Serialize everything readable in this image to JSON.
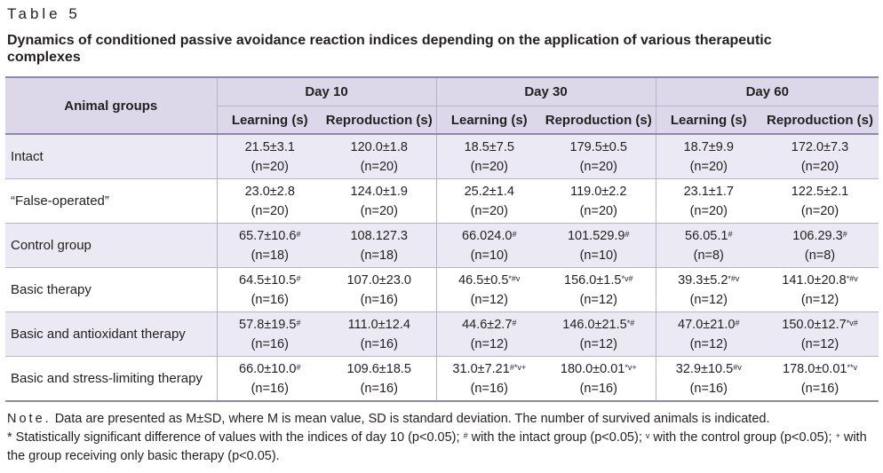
{
  "caption": {
    "label": "Table 5",
    "title": "Dynamics of conditioned passive avoidance reaction indices depending on the application of various therapeutic complexes"
  },
  "table": {
    "group_header": "Animal groups",
    "days": [
      "Day 10",
      "Day 30",
      "Day 60"
    ],
    "subheaders": [
      "Learning (s)",
      "Reproduction (s)",
      "Learning (s)",
      "Reproduction (s)",
      "Learning (s)",
      "Reproduction (s)"
    ],
    "rows": [
      {
        "group": "Intact",
        "cells": [
          {
            "v": "21.5±3.1",
            "s": "",
            "n": "(n=20)"
          },
          {
            "v": "120.0±1.8",
            "s": "",
            "n": "(n=20)"
          },
          {
            "v": "18.5±7.5",
            "s": "",
            "n": "(n=20)"
          },
          {
            "v": "179.5±0.5",
            "s": "",
            "n": "(n=20)"
          },
          {
            "v": "18.7±9.9",
            "s": "",
            "n": "(n=20)"
          },
          {
            "v": "172.0±7.3",
            "s": "",
            "n": "(n=20)"
          }
        ]
      },
      {
        "group": "“False-operated”",
        "cells": [
          {
            "v": "23.0±2.8",
            "s": "",
            "n": "(n=20)"
          },
          {
            "v": "124.0±1.9",
            "s": "",
            "n": "(n=20)"
          },
          {
            "v": "25.2±1.4",
            "s": "",
            "n": "(n=20)"
          },
          {
            "v": "119.0±2.2",
            "s": "",
            "n": "(n=20)"
          },
          {
            "v": "23.1±1.7",
            "s": "",
            "n": "(n=20)"
          },
          {
            "v": "122.5±2.1",
            "s": "",
            "n": "(n=20)"
          }
        ]
      },
      {
        "group": "Control group",
        "cells": [
          {
            "v": "65.7±10.6",
            "s": "#",
            "n": "(n=18)"
          },
          {
            "v": "108.127.3",
            "s": "",
            "n": "(n=18)"
          },
          {
            "v": "66.024.0",
            "s": "#",
            "n": "(n=10)"
          },
          {
            "v": "101.529.9",
            "s": "#",
            "n": "(n=10)"
          },
          {
            "v": "56.05.1",
            "s": "#",
            "n": "(n=8)"
          },
          {
            "v": "106.29.3",
            "s": "#",
            "n": "(n=8)"
          }
        ]
      },
      {
        "group": "Basic therapy",
        "cells": [
          {
            "v": "64.5±10.5",
            "s": "#",
            "n": "(n=16)"
          },
          {
            "v": "107.0±23.0",
            "s": "",
            "n": "(n=16)"
          },
          {
            "v": "46.5±0.5",
            "s": "*#v",
            "n": "(n=12)"
          },
          {
            "v": "156.0±1.5",
            "s": "*v#",
            "n": "(n=12)"
          },
          {
            "v": "39.3±5.2",
            "s": "*#v",
            "n": "(n=12)"
          },
          {
            "v": "141.0±20.8",
            "s": "*#v",
            "n": "(n=12)"
          }
        ]
      },
      {
        "group": "Basic and antioxidant therapy",
        "cells": [
          {
            "v": "57.8±19.5",
            "s": "#",
            "n": "(n=16)"
          },
          {
            "v": "111.0±12.4",
            "s": "",
            "n": "(n=16)"
          },
          {
            "v": "44.6±2.7",
            "s": "#",
            "n": "(n=12)"
          },
          {
            "v": "146.0±21.5",
            "s": "*#",
            "n": "(n=12)"
          },
          {
            "v": "47.0±21.0",
            "s": "#",
            "n": "(n=12)"
          },
          {
            "v": "150.0±12.7",
            "s": "*v#",
            "n": "(n=12)"
          }
        ]
      },
      {
        "group": "Basic and stress-limiting therapy",
        "cells": [
          {
            "v": "66.0±10.0",
            "s": "#",
            "n": "(n=16)"
          },
          {
            "v": "109.6±18.5",
            "s": "",
            "n": "(n=16)"
          },
          {
            "v": "31.0±7.21",
            "s": "#*v+",
            "n": "(n=16)"
          },
          {
            "v": "180.0±0.01",
            "s": "*v+",
            "n": "(n=16)"
          },
          {
            "v": "32.9±10.5",
            "s": "#v",
            "n": "(n=16)"
          },
          {
            "v": "178.0±0.01",
            "s": "**v",
            "n": "(n=16)"
          }
        ]
      }
    ]
  },
  "note": {
    "label": "Note.",
    "line1": "Data are presented as M±SD, where M is mean value, SD is standard deviation. The number of survived animals is indicated.",
    "l2a": "* Statistically significant difference of values with the indices of day 10 (p<0.05);",
    "s_hash": "#",
    "l2b": "with the intact group (p<0.05);",
    "s_v": "v",
    "l2c": "with the control group (p<0.05);",
    "s_plus": "+",
    "l2d": "with the group receiving only basic therapy (p<0.05)."
  }
}
